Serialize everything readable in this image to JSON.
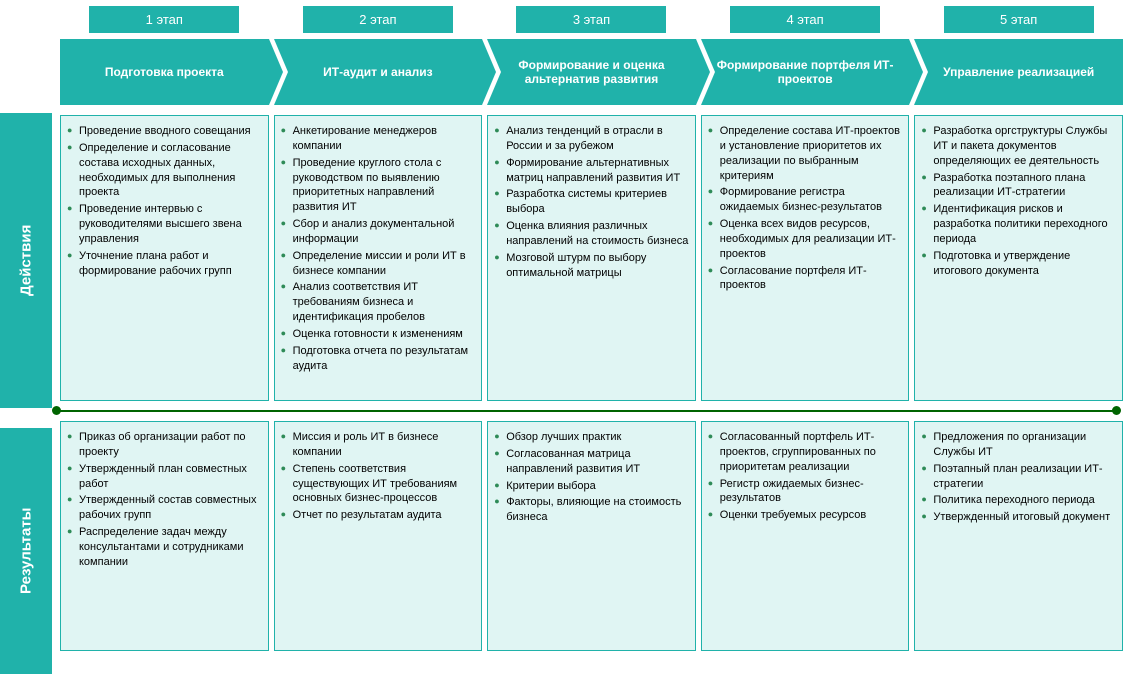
{
  "colors": {
    "header_bg": "#20b2aa",
    "header_text": "#ffffff",
    "box_bg": "#e0f5f3",
    "box_border": "#20b2aa",
    "bullet": "#2e8b57",
    "line": "#006400",
    "text": "#000000"
  },
  "side": {
    "actions": "Действия",
    "results": "Результаты"
  },
  "stages": [
    {
      "num": "1 этап",
      "title": "Подготовка проекта",
      "actions": [
        "Проведение вводного совещания",
        "Определение и согласование состава исходных данных, необходимых для выполнения проекта",
        "Проведение интервью с руководителями высшего звена управления",
        "Уточнение плана работ и формирование рабочих групп"
      ],
      "results": [
        "Приказ об организации работ по проекту",
        "Утвержденный план совместных работ",
        "Утвержденный состав совместных рабочих групп",
        "Распределение задач между консультантами и сотрудниками компании"
      ]
    },
    {
      "num": "2 этап",
      "title": "ИТ-аудит и анализ",
      "actions": [
        "Анкетирование менеджеров компании",
        "Проведение круглого стола с руководством по выявлению приоритетных направлений развития ИТ",
        "Сбор и анализ документальной информации",
        "Определение миссии и роли ИТ в бизнесе компании",
        "Анализ соответствия ИТ требованиям бизнеса и идентификация пробелов",
        "Оценка готовности к изменениям",
        "Подготовка отчета по результатам аудита"
      ],
      "results": [
        "Миссия и роль ИТ в бизнесе компании",
        "Степень соответствия существующих ИТ требованиям основных бизнес-процессов",
        "Отчет по результатам аудита"
      ]
    },
    {
      "num": "3 этап",
      "title": "Формирование и оценка альтернатив развития",
      "actions": [
        "Анализ тенденций в отрасли в России и за рубежом",
        "Формирование альтернативных матриц направлений развития ИТ",
        "Разработка системы критериев выбора",
        "Оценка влияния различных направлений на стоимость бизнеса",
        "Мозговой штурм по выбору оптимальной матрицы"
      ],
      "results": [
        "Обзор лучших практик",
        "Согласованная матрица направлений развития ИТ",
        "Критерии выбора",
        "Факторы, влияющие на стоимость бизнеса"
      ]
    },
    {
      "num": "4 этап",
      "title": "Формирование портфеля ИТ-проектов",
      "actions": [
        "Определение состава ИТ-проектов и установление приоритетов их реализации по выбранным критериям",
        "Формирование регистра ожидаемых бизнес-результатов",
        "Оценка всех видов ресурсов, необходимых для реализации ИТ-проектов",
        "Согласование портфеля ИТ-проектов"
      ],
      "results": [
        "Согласованный портфель ИТ-проектов, сгруппированных по приоритетам реализации",
        "Регистр ожидаемых бизнес-результатов",
        "Оценки требуемых ресурсов"
      ]
    },
    {
      "num": "5 этап",
      "title": "Управление реализацией",
      "actions": [
        "Разработка оргструктуры Службы ИТ и пакета документов определяющих ее деятельность",
        "Разработка поэтапного плана реализации ИТ-стратегии",
        "Идентификация рисков и разработка политики переходного периода",
        "Подготовка и утверждение итогового документа"
      ],
      "results": [
        "Предложения по организации Службы ИТ",
        "Поэтапный план реализации ИТ-стратегии",
        "Политика переходного периода",
        "Утвержденный итоговый документ"
      ]
    }
  ]
}
